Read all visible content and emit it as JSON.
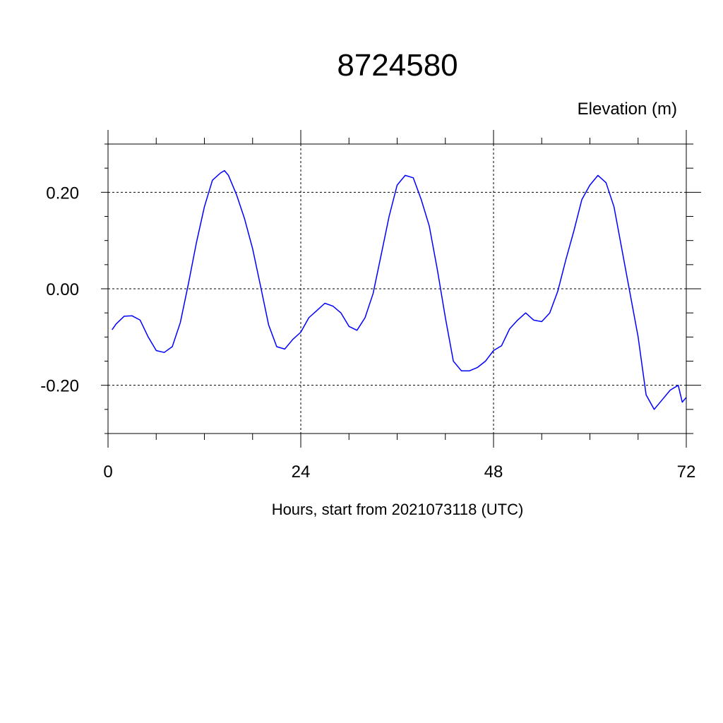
{
  "chart_data": {
    "type": "line",
    "title": "8724580",
    "ylabel": "Elevation (m)",
    "xlabel": "Hours, start from 2021073118 (UTC)",
    "xlim": [
      0,
      72
    ],
    "ylim": [
      -0.3,
      0.3
    ],
    "xticks": [
      0,
      24,
      48,
      72
    ],
    "xtick_labels": [
      "0",
      "24",
      "48",
      "72"
    ],
    "yticks": [
      0.2,
      0.0,
      -0.2
    ],
    "ytick_labels": [
      "0.20",
      "0.00",
      "-0.20"
    ],
    "grid": true,
    "line_color": "#0000ff",
    "series": [
      {
        "x": [
          0.5,
          1,
          2,
          3,
          4,
          5,
          6,
          7,
          8,
          9,
          10,
          11,
          12,
          13,
          14,
          14.5,
          15,
          16,
          17,
          18,
          19,
          20,
          21,
          22,
          23,
          24,
          25,
          26,
          27,
          28,
          29,
          30,
          31,
          32,
          33,
          34,
          35,
          36,
          37,
          38,
          39,
          40,
          41,
          42,
          43,
          44,
          45,
          46,
          47,
          48,
          49,
          50,
          51,
          52,
          53,
          54,
          55,
          56,
          57,
          58,
          59,
          60,
          61,
          62,
          63,
          64,
          65,
          66,
          67,
          68,
          69,
          70,
          71,
          71.5,
          72
        ],
        "y": [
          -0.085,
          -0.073,
          -0.057,
          -0.056,
          -0.065,
          -0.1,
          -0.128,
          -0.132,
          -0.12,
          -0.07,
          0.01,
          0.095,
          0.17,
          0.225,
          0.24,
          0.245,
          0.235,
          0.195,
          0.145,
          0.083,
          0.005,
          -0.075,
          -0.12,
          -0.125,
          -0.105,
          -0.09,
          -0.06,
          -0.045,
          -0.03,
          -0.036,
          -0.05,
          -0.078,
          -0.086,
          -0.06,
          -0.01,
          0.07,
          0.15,
          0.215,
          0.235,
          0.23,
          0.185,
          0.13,
          0.04,
          -0.06,
          -0.15,
          -0.17,
          -0.17,
          -0.163,
          -0.15,
          -0.128,
          -0.118,
          -0.083,
          -0.065,
          -0.05,
          -0.065,
          -0.068,
          -0.05,
          -0.005,
          0.06,
          0.12,
          0.185,
          0.215,
          0.235,
          0.22,
          0.17,
          0.08,
          -0.01,
          -0.1,
          -0.22,
          -0.25,
          -0.23,
          -0.21,
          -0.2,
          -0.235,
          -0.225
        ]
      }
    ]
  }
}
